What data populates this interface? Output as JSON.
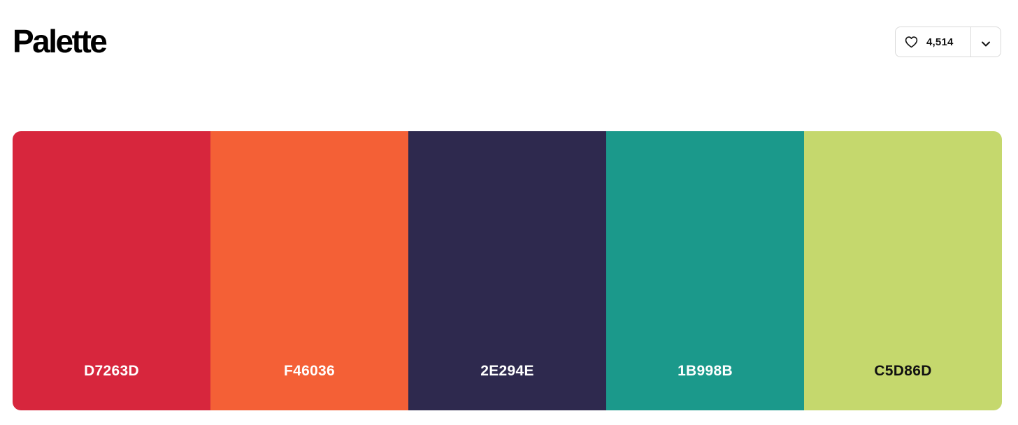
{
  "header": {
    "title": "Palette",
    "like_count": "4,514"
  },
  "icons": {
    "like": "heart-icon",
    "more": "chevron-down-icon"
  },
  "swatches": [
    {
      "hex": "D7263D",
      "color": "#D7263D",
      "text_color": "#FFFFFF"
    },
    {
      "hex": "F46036",
      "color": "#F46036",
      "text_color": "#FFFFFF"
    },
    {
      "hex": "2E294E",
      "color": "#2E294E",
      "text_color": "#FFFFFF"
    },
    {
      "hex": "1B998B",
      "color": "#1B998B",
      "text_color": "#FFFFFF"
    },
    {
      "hex": "C5D86D",
      "color": "#C5D86D",
      "text_color": "#111111"
    }
  ]
}
